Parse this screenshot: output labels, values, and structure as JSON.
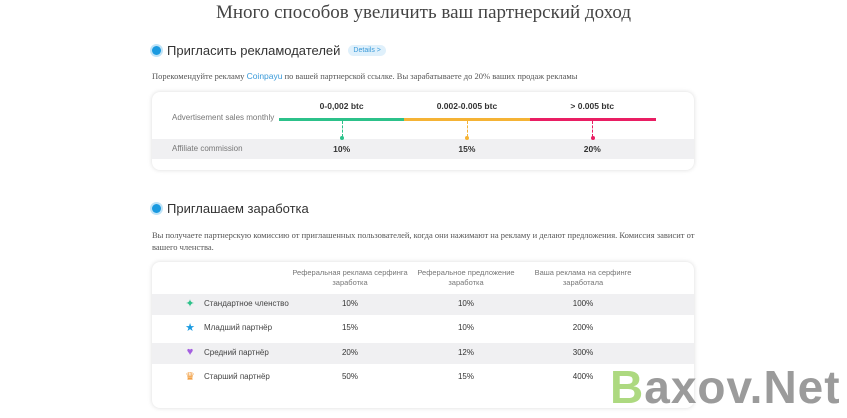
{
  "title": "Много способов увеличить ваш партнерский доход",
  "advertisers": {
    "heading": "Пригласить рекламодателей",
    "details_label": "Details >",
    "desc_before": "Порекомендуйте рекламу ",
    "brand": "Coinpayu",
    "desc_after": " по вашей партнерской ссылке. Вы зарабатываете до 20% ваших продаж рекламы",
    "sales_label": "Advertisement sales monthly",
    "commission_label": "Affiliate commission",
    "tiers": [
      {
        "range": "0-0,002 btc",
        "commission": "10%",
        "color": "#2cc18a"
      },
      {
        "range": "0.002-0.005 btc",
        "commission": "15%",
        "color": "#f5b335"
      },
      {
        "range": "> 0.005 btc",
        "commission": "20%",
        "color": "#e91e63"
      }
    ]
  },
  "earners": {
    "heading": "Приглашаем заработка",
    "desc": "Вы получаете партнерскую комиссию от приглашенных пользователей, когда они нажимают на рекламу и делают предложения. Комиссия зависит от вашего членства.",
    "columns": [
      "Реферальная реклама серфинга заработка",
      "Реферальное предложение заработка",
      "Ваша реклама на серфинге заработала"
    ],
    "rows": [
      {
        "icon": "sparkle-icon",
        "glyph": "✦",
        "color": "#2cc18a",
        "name": "Стандартное членство",
        "values": [
          "10%",
          "10%",
          "100%"
        ]
      },
      {
        "icon": "star-icon",
        "glyph": "★",
        "color": "#1a9ae0",
        "name": "Младший партнёр",
        "values": [
          "15%",
          "10%",
          "200%"
        ]
      },
      {
        "icon": "gem-icon",
        "glyph": "♥",
        "color": "#a45fe0",
        "name": "Средний партнёр",
        "values": [
          "20%",
          "12%",
          "300%"
        ]
      },
      {
        "icon": "crown-icon",
        "glyph": "♛",
        "color": "#f0932b",
        "name": "Старший партнёр",
        "values": [
          "50%",
          "15%",
          "400%"
        ]
      }
    ]
  },
  "watermark": {
    "first": "B",
    "rest": "axov.Net"
  }
}
